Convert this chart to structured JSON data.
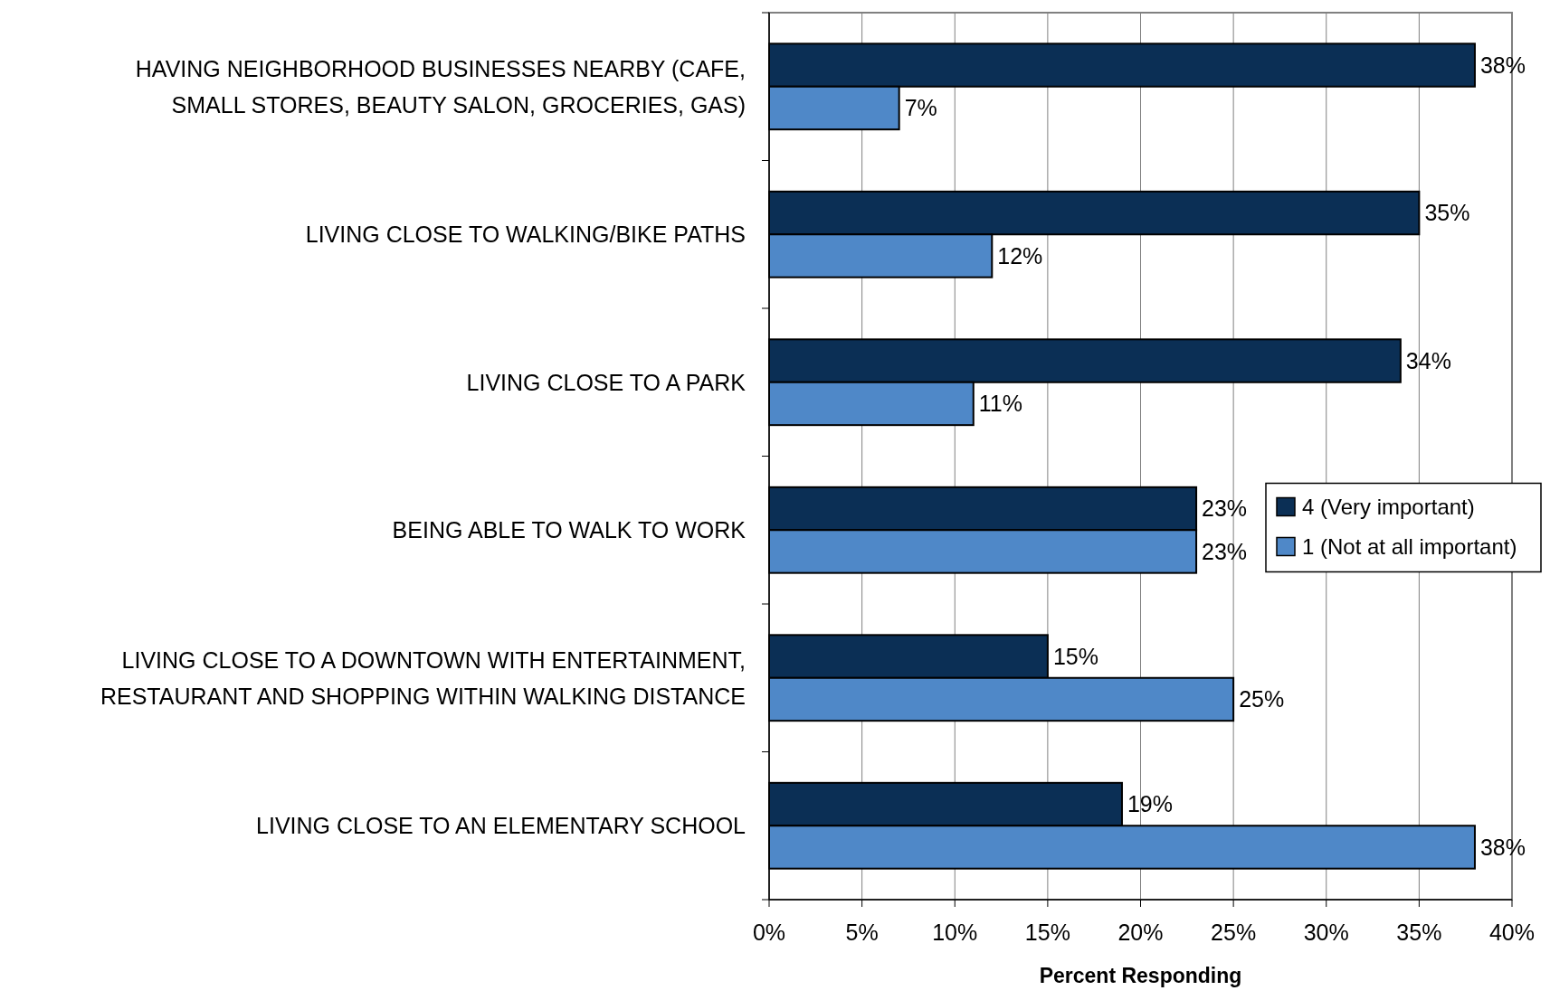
{
  "chart_data": {
    "type": "bar",
    "orientation": "horizontal",
    "xlabel": "Percent Responding",
    "categories": [
      "HAVING NEIGHBORHOOD BUSINESSES NEARBY (CAFE, SMALL STORES, BEAUTY SALON, GROCERIES, GAS)",
      "LIVING CLOSE TO WALKING/BIKE PATHS",
      "LIVING CLOSE TO A PARK",
      "BEING ABLE TO WALK TO WORK",
      "LIVING CLOSE TO A DOWNTOWN WITH ENTERTAINMENT, RESTAURANT AND SHOPPING WITHIN WALKING DISTANCE",
      "LIVING CLOSE TO AN ELEMENTARY SCHOOL"
    ],
    "series": [
      {
        "name": "4 (Very important)",
        "color": "#0b2f55",
        "values": [
          38,
          35,
          34,
          23,
          15,
          19
        ],
        "value_labels": [
          "38%",
          "35%",
          "34%",
          "23%",
          "15%",
          "19%"
        ]
      },
      {
        "name": "1 (Not at all important)",
        "color": "#4f88c8",
        "values": [
          7,
          12,
          11,
          23,
          25,
          38
        ],
        "value_labels": [
          "7%",
          "12%",
          "11%",
          "23%",
          "25%",
          "38%"
        ]
      }
    ],
    "xlim": [
      0,
      40
    ],
    "xticks": [
      {
        "value": 0,
        "label": "0%"
      },
      {
        "value": 5,
        "label": "5%"
      },
      {
        "value": 10,
        "label": "10%"
      },
      {
        "value": 15,
        "label": "15%"
      },
      {
        "value": 20,
        "label": "20%"
      },
      {
        "value": 25,
        "label": "25%"
      },
      {
        "value": 30,
        "label": "30%"
      },
      {
        "value": 35,
        "label": "35%"
      },
      {
        "value": 40,
        "label": "40%"
      }
    ],
    "grid": "x",
    "legend": "right"
  }
}
